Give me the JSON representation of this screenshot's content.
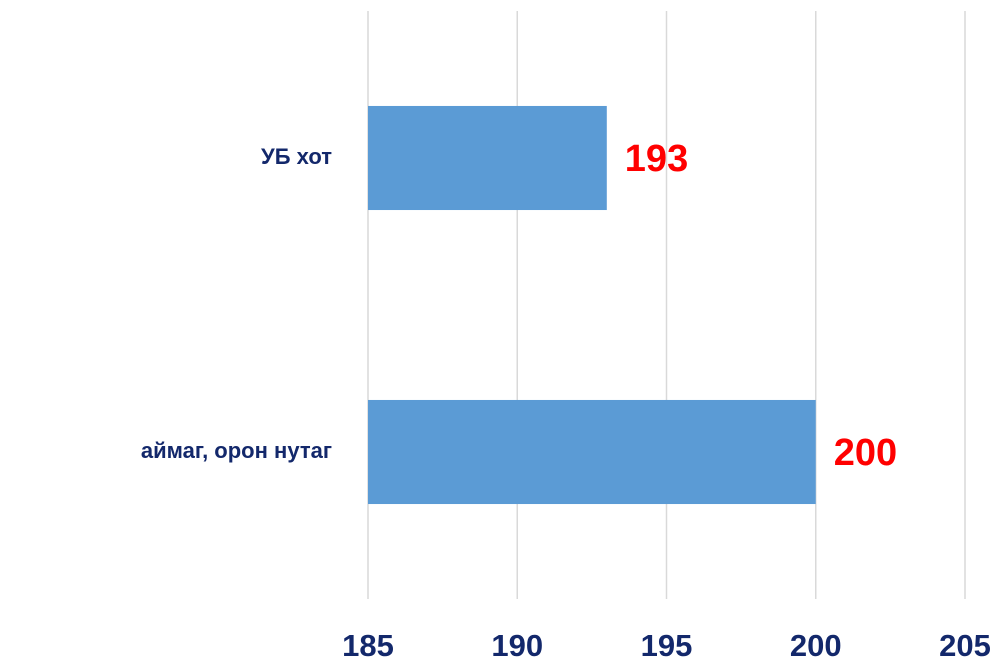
{
  "chart_data": {
    "type": "bar",
    "orientation": "horizontal",
    "categories": [
      "УБ хот",
      "аймаг, орон нутаг"
    ],
    "values": [
      193,
      200
    ],
    "color": "#5b9bd5",
    "label_color": "#ff0000",
    "xlim": [
      185,
      205
    ],
    "xticks": [
      185,
      190,
      195,
      200,
      205
    ],
    "grid": true
  }
}
